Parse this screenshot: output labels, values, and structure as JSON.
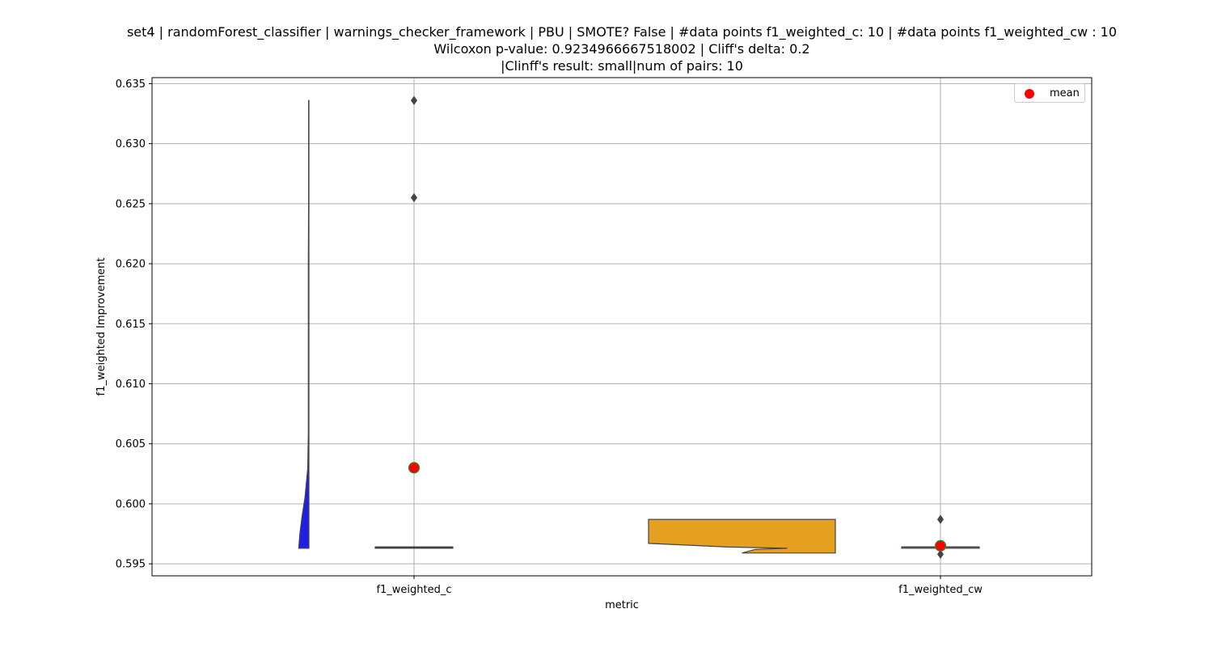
{
  "chart_data": {
    "type": "violin",
    "title_lines": [
      "set4 | randomForest_classifier | warnings_checker_framework | PBU | SMOTE? False | #data points f1_weighted_c: 10 | #data points f1_weighted_cw : 10",
      "Wilcoxon p-value: 0.9234966667518002 | Cliff's delta: 0.2",
      "|Clinff's result: small|num of pairs: 10"
    ],
    "xlabel": "metric",
    "ylabel": "f1_weighted Improvement",
    "ylim": [
      0.594,
      0.6355
    ],
    "yticks": [
      "0.595",
      "0.600",
      "0.605",
      "0.610",
      "0.615",
      "0.620",
      "0.625",
      "0.630",
      "0.635"
    ],
    "categories": [
      "f1_weighted_c",
      "f1_weighted_cw"
    ],
    "grid": true,
    "legend": {
      "position": "upper-right",
      "entries": [
        {
          "label": "mean",
          "color": "#ff0000"
        }
      ]
    },
    "series": [
      {
        "category": "f1_weighted_c",
        "color": "#1f1fe6",
        "median": 0.5964,
        "q1": 0.5963,
        "q3": 0.5964,
        "whisker_low": 0.5963,
        "whisker_high": 0.5964,
        "mean": 0.603,
        "outliers": [
          0.6336,
          0.6255
        ],
        "violin": {
          "y": [
            0.5963,
            0.5975,
            0.599,
            0.6005,
            0.603,
            0.606,
            0.61,
            0.62,
            0.625,
            0.63,
            0.6336
          ],
          "width": [
            0.18,
            0.16,
            0.12,
            0.07,
            0.02,
            0.01,
            0.01,
            0.01,
            0.006,
            0.005,
            0.005
          ]
        }
      },
      {
        "category": "f1_weighted_cw",
        "color": "#e5a020",
        "median": 0.5964,
        "q1": 0.5963,
        "q3": 0.5964,
        "whisker_low": 0.5963,
        "whisker_high": 0.5964,
        "mean": 0.5965,
        "outliers": [
          0.5987,
          0.5958
        ],
        "violin": {
          "y": [
            0.5959,
            0.5962,
            0.5963,
            0.5964,
            0.5966,
            0.5967,
            0.5987
          ],
          "width": [
            0.35,
            0.3,
            0.18,
            0.4,
            0.6,
            0.7,
            0.7
          ]
        }
      }
    ]
  }
}
